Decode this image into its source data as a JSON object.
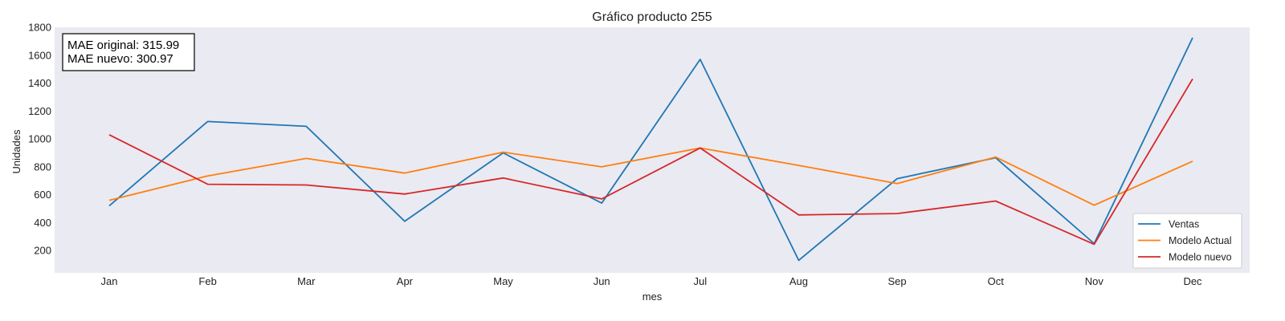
{
  "chart_data": {
    "type": "line",
    "title": "Gráfico producto 255",
    "xlabel": "mes",
    "ylabel": "Unidades",
    "categories": [
      "Jan",
      "Feb",
      "Mar",
      "Apr",
      "May",
      "Jun",
      "Jul",
      "Aug",
      "Sep",
      "Oct",
      "Nov",
      "Dec"
    ],
    "yticks": [
      200,
      400,
      600,
      800,
      1000,
      1200,
      1400,
      1600,
      1800
    ],
    "ylim": [
      40,
      1800
    ],
    "grid": false,
    "background": "#eaeaf2",
    "legend_position": "lower-right",
    "annotations": {
      "line1": "MAE original: 315.99",
      "line2": "MAE nuevo: 300.97"
    },
    "series": [
      {
        "name": "Ventas",
        "color": "#1f77b4",
        "values": [
          520,
          1125,
          1090,
          410,
          900,
          540,
          1570,
          130,
          715,
          865,
          250,
          1725
        ]
      },
      {
        "name": "Modelo Actual",
        "color": "#ff7f0e",
        "values": [
          560,
          735,
          860,
          755,
          905,
          800,
          935,
          810,
          680,
          870,
          525,
          840
        ]
      },
      {
        "name": "Modelo nuevo",
        "color": "#d62728",
        "values": [
          1030,
          675,
          670,
          605,
          720,
          570,
          935,
          455,
          465,
          555,
          245,
          1430
        ]
      }
    ]
  }
}
